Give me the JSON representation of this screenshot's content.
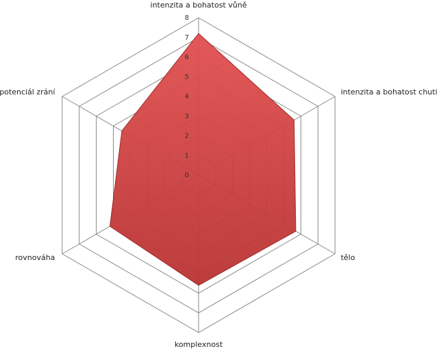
{
  "chart_data": {
    "type": "radar",
    "categories": [
      "intenzita a bohatost vůně",
      "intenzita a bohatost chuti",
      "tělo",
      "komplexnost",
      "rovnováha",
      "potenciál zrání"
    ],
    "values": [
      7.2,
      5.6,
      5.7,
      5.6,
      5.2,
      4.5
    ],
    "color": "#d94545",
    "ylim": [
      0,
      8
    ],
    "yticks": [
      0,
      1,
      2,
      3,
      4,
      5,
      6,
      7,
      8
    ],
    "grid": true
  }
}
